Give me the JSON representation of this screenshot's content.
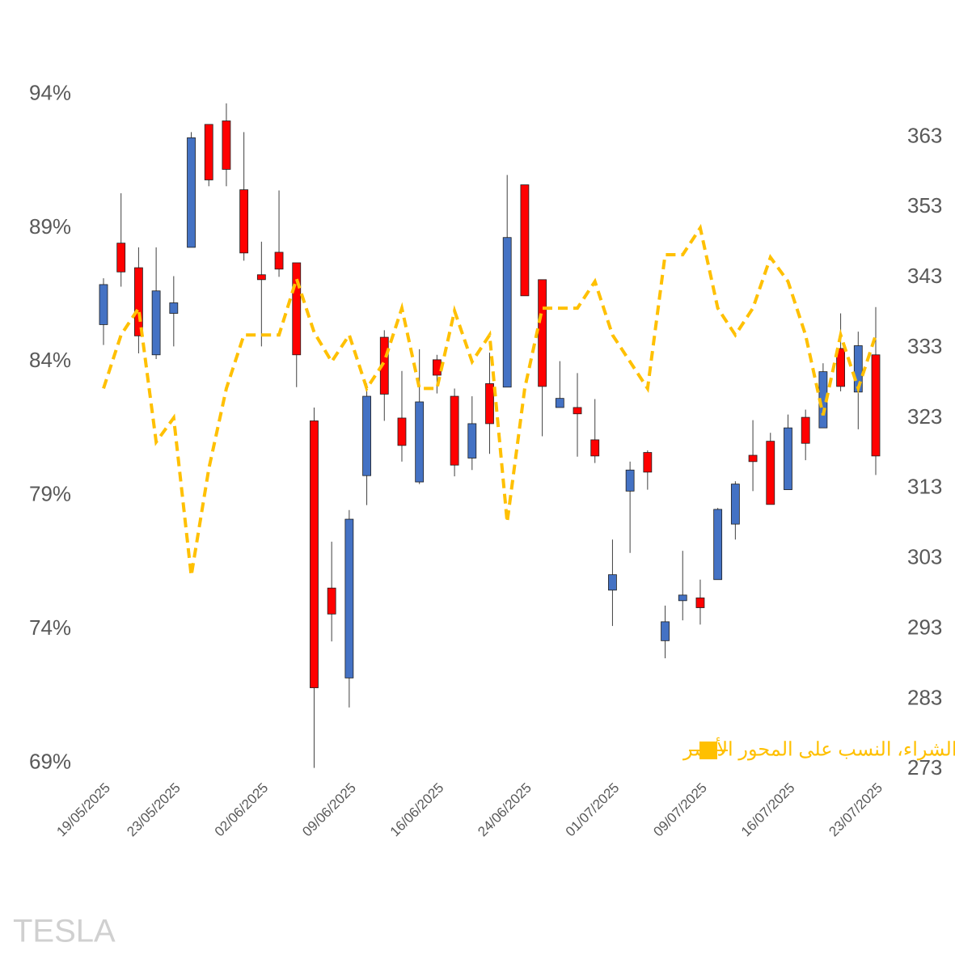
{
  "watermark": "TESLA",
  "chart_data": {
    "type": "candlestick",
    "categories": [
      "19/05/2025",
      null,
      null,
      null,
      "23/05/2025",
      null,
      null,
      null,
      null,
      "02/06/2025",
      null,
      null,
      null,
      null,
      "09/06/2025",
      null,
      null,
      null,
      null,
      "16/06/2025",
      null,
      null,
      null,
      null,
      "24/06/2025",
      null,
      null,
      null,
      null,
      "01/07/2025",
      null,
      null,
      null,
      null,
      "09/07/2025",
      null,
      null,
      null,
      null,
      "16/07/2025",
      null,
      null,
      null,
      null,
      "23/07/2025"
    ],
    "open": [
      336.3,
      347.9,
      344.4,
      332.0,
      337.9,
      347.3,
      364.8,
      365.3,
      355.5,
      343.4,
      346.6,
      345.1,
      322.6,
      298.8,
      286.0,
      314.8,
      334.5,
      323.0,
      313.9,
      331.3,
      326.1,
      317.3,
      327.9,
      327.4,
      356.2,
      342.7,
      324.5,
      324.5,
      319.9,
      298.5,
      312.6,
      318.1,
      291.3,
      297.0,
      297.4,
      300.0,
      307.9,
      317.7,
      319.7,
      312.8,
      323.1,
      321.6,
      332.9,
      326.7,
      332.0
    ],
    "high": [
      342.9,
      355.0,
      347.3,
      347.3,
      343.2,
      363.7,
      364.8,
      367.8,
      363.7,
      348.1,
      355.4,
      345.1,
      324.5,
      305.4,
      309.9,
      327.9,
      335.5,
      329.7,
      332.8,
      332.0,
      327.2,
      326.1,
      332.3,
      357.6,
      356.2,
      342.7,
      331.1,
      329.4,
      325.7,
      305.7,
      316.8,
      318.4,
      296.3,
      304.1,
      300.0,
      310.2,
      314.0,
      322.7,
      320.9,
      323.5,
      324.2,
      330.8,
      337.9,
      335.3,
      338.8
    ],
    "low": [
      333.4,
      341.7,
      332.2,
      331.4,
      333.2,
      347.3,
      356.0,
      356.0,
      345.4,
      333.2,
      343.1,
      327.4,
      273.2,
      291.2,
      281.8,
      310.6,
      322.6,
      316.8,
      313.6,
      326.5,
      314.7,
      315.6,
      317.9,
      327.4,
      340.4,
      320.4,
      324.5,
      317.5,
      316.6,
      293.4,
      303.8,
      312.8,
      288.8,
      294.2,
      293.6,
      300.0,
      305.7,
      312.6,
      310.7,
      312.8,
      317.0,
      321.6,
      326.8,
      321.4,
      314.9
    ],
    "close": [
      342.0,
      343.8,
      334.7,
      341.1,
      339.4,
      362.9,
      356.9,
      358.4,
      346.5,
      342.7,
      344.2,
      332.0,
      284.6,
      295.1,
      308.6,
      326.1,
      326.4,
      319.1,
      325.3,
      329.1,
      316.3,
      322.2,
      322.2,
      348.7,
      340.4,
      327.5,
      325.8,
      323.6,
      317.6,
      300.7,
      315.6,
      315.3,
      294.0,
      297.8,
      296.0,
      310.0,
      313.6,
      316.8,
      310.7,
      321.6,
      319.4,
      329.6,
      327.5,
      333.3,
      317.6
    ],
    "up_color": "#4472c4",
    "down_color": "#ff0000",
    "candle_axis": "y2",
    "series": [
      {
        "name": "توجه عملاء، نسبة الشراء، النسب على المحور الأيسر",
        "color": "#ffc000",
        "axis": "y",
        "dashed": true,
        "values": [
          83.0,
          85.0,
          86.0,
          81.0,
          81.9,
          76.0,
          80.0,
          83.0,
          85.0,
          85.0,
          85.0,
          87.1,
          85.1,
          84.0,
          85.0,
          83.0,
          84.0,
          86.0,
          83.0,
          83.0,
          85.9,
          84.0,
          85.0,
          78.0,
          83.0,
          86.0,
          86.0,
          86.0,
          87.0,
          85.0,
          84.0,
          83.0,
          88.0,
          88.0,
          89.0,
          86.0,
          85.0,
          86.0,
          87.9,
          87.0,
          85.0,
          82.0,
          85.0,
          83.0,
          85.0
        ]
      }
    ],
    "ylim": [
      68.5,
      94.5
    ],
    "yticks": [
      {
        "value": 69,
        "label": "69%"
      },
      {
        "value": 74,
        "label": "74%"
      },
      {
        "value": 79,
        "label": "79%"
      },
      {
        "value": 84,
        "label": "84%"
      },
      {
        "value": 89,
        "label": "89%"
      },
      {
        "value": 94,
        "label": "94%"
      }
    ],
    "y2lim": [
      272,
      371
    ],
    "y2ticks": [
      273,
      283,
      293,
      303,
      313,
      323,
      333,
      343,
      353,
      363
    ]
  }
}
